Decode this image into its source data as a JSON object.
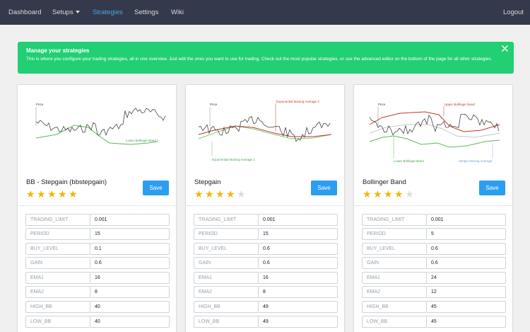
{
  "nav": {
    "dashboard": "Dashboard",
    "setups": "Setups",
    "strategies": "Strategies",
    "settings": "Settings",
    "wiki": "Wiki",
    "logout": "Logout"
  },
  "alert": {
    "title": "Manage your strategies",
    "text": "This is where you configure your trading strategies, all in one overview. Just edit the ones you want to use for trading. Check out the most popular strategies, or use the advanced editor on the bottom of the page for all other strategies.",
    "color": "#22cf73"
  },
  "save_label": "Save",
  "colors": {
    "accent": "#2b9ef0",
    "star": "#f4b400",
    "nav_bg": "#343a4b",
    "nav_active": "#4da3e8"
  },
  "cards": [
    {
      "title": "BB - Stepgain (bbstepgain)",
      "rating": 5,
      "chart_labels": {
        "price": "Price",
        "lower_band": "Lower Bollinger Band"
      },
      "params": [
        {
          "label": "TRADING_LIMIT",
          "value": "0.001"
        },
        {
          "label": "PERIOD",
          "value": "15"
        },
        {
          "label": "BUY_LEVEL",
          "value": "0.1"
        },
        {
          "label": "GAIN",
          "value": "0.6"
        },
        {
          "label": "EMA1",
          "value": "16"
        },
        {
          "label": "EMA2",
          "value": "8"
        },
        {
          "label": "HIGH_BB",
          "value": "40"
        },
        {
          "label": "LOW_BB",
          "value": "40"
        }
      ]
    },
    {
      "title": "Stepgain",
      "rating": 4,
      "chart_labels": {
        "price": "Price",
        "ema2": "Exponential Moving Average 2",
        "ema1": "Exponential Moving Average 1"
      },
      "params": [
        {
          "label": "TRADING_LIMIT",
          "value": "0.001"
        },
        {
          "label": "PERIOD",
          "value": "15"
        },
        {
          "label": "BUY_LEVEL",
          "value": "0.6"
        },
        {
          "label": "GAIN",
          "value": "0.6"
        },
        {
          "label": "EMA1",
          "value": "16"
        },
        {
          "label": "EMA2",
          "value": "8"
        },
        {
          "label": "HIGH_BB",
          "value": "49"
        },
        {
          "label": "LOW_BB",
          "value": "49"
        }
      ]
    },
    {
      "title": "Bollinger Band",
      "rating": 4,
      "chart_labels": {
        "price": "Price",
        "upper_band": "Upper Bollinger Band",
        "lower_band": "Lower Bollinger Band",
        "sma": "Simple Moving Average"
      },
      "params": [
        {
          "label": "TRADING_LIMIT",
          "value": "0.001"
        },
        {
          "label": "PERIOD",
          "value": "5"
        },
        {
          "label": "BUY_LEVEL",
          "value": "0.6"
        },
        {
          "label": "GAIN",
          "value": "0.6"
        },
        {
          "label": "EMA1",
          "value": "24"
        },
        {
          "label": "EMA2",
          "value": "12"
        },
        {
          "label": "HIGH_BB",
          "value": "45"
        },
        {
          "label": "LOW_BB",
          "value": "45"
        }
      ]
    }
  ]
}
